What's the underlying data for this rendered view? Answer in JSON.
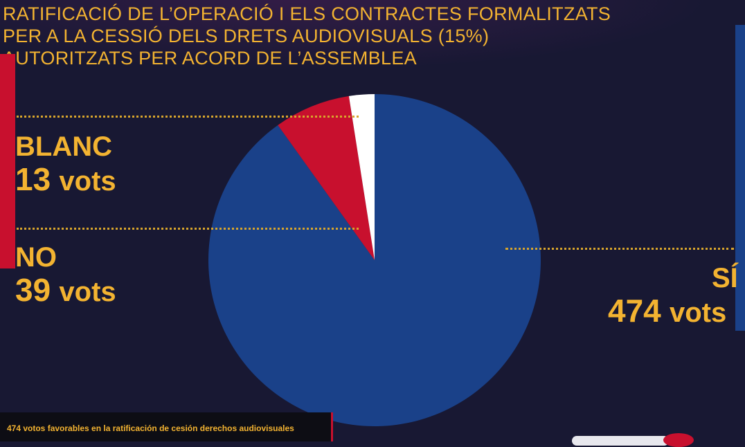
{
  "title_lines": [
    "RATIFICACIÓ DE L’OPERACIÓ I ELS CONTRACTES FORMALITZATS",
    "PER A LA CESSIÓ DELS DRETS AUDIOVISUALS (15%)",
    "AUTORITZATS PER ACORD DE L’ASSEMBLEA"
  ],
  "labels": {
    "blanc": {
      "name": "BLANC",
      "count": "13",
      "unit": "vots"
    },
    "no": {
      "name": "NO",
      "count": "39",
      "unit": "vots"
    },
    "si": {
      "name": "SÍ",
      "count": "474",
      "unit": "vots"
    }
  },
  "caption": "474 votos favorables en la ratificación de cesión derechos audiovisuales",
  "colors": {
    "si": "#1a4189",
    "no": "#c8102e",
    "blanc": "#ffffff",
    "accent": "#f3b331"
  },
  "chart_data": {
    "type": "pie",
    "title": "RATIFICACIÓ DE L’OPERACIÓ I ELS CONTRACTES FORMALITZATS PER A LA CESSIÓ DELS DRETS AUDIOVISUALS (15%) AUTORITZATS PER ACORD DE L’ASSEMBLEA",
    "slices": [
      {
        "label": "SÍ",
        "value": 474,
        "color": "#1a4189"
      },
      {
        "label": "NO",
        "value": 39,
        "color": "#c8102e"
      },
      {
        "label": "BLANC",
        "value": 13,
        "color": "#ffffff"
      }
    ]
  }
}
